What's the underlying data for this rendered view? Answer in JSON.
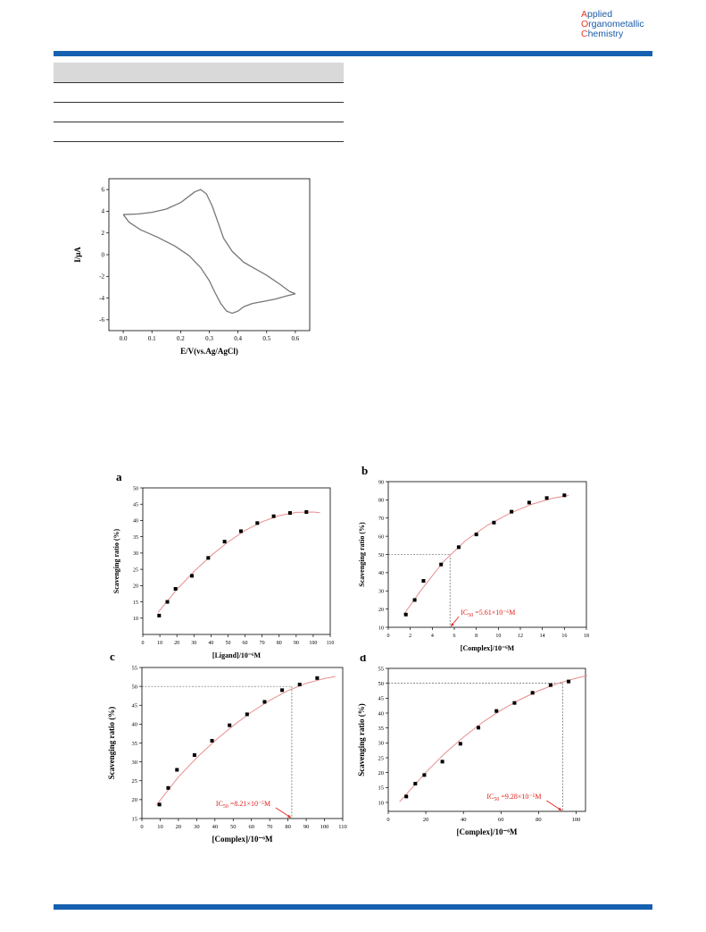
{
  "journal": {
    "name_lines": [
      {
        "cap": "A",
        "rest": "pplied"
      },
      {
        "cap": "O",
        "rest": "rganometallic"
      },
      {
        "cap": "C",
        "rest": "hemistry"
      }
    ]
  },
  "colors": {
    "brand_blue": "#1560b0",
    "logo_red": "#e23b26",
    "fit_curve": "#e88d8d",
    "annotation": "#e0201a",
    "cv_line": "#777777"
  },
  "table": {
    "rows": 4
  },
  "chart_data": [
    {
      "id": "cv",
      "type": "line",
      "xlabel": "E/V(vs.Ag/AgCl)",
      "ylabel": "I/μA",
      "xlim": [
        -0.05,
        0.65
      ],
      "ylim": [
        -7,
        7
      ],
      "xticks": [
        0.0,
        0.1,
        0.2,
        0.3,
        0.4,
        0.5,
        0.6
      ],
      "xtick_labels": [
        "0.0",
        "0.1",
        "0.2",
        "0.3",
        "0.4",
        "0.5",
        "0.6"
      ],
      "yticks": [
        -6,
        -4,
        -2,
        0,
        2,
        4,
        6
      ],
      "ytick_labels": [
        "-6",
        "-4",
        "-2",
        "0",
        "2",
        "4",
        "6"
      ],
      "series": [
        {
          "x": [
            0.0,
            0.05,
            0.1,
            0.15,
            0.2,
            0.23,
            0.25,
            0.27,
            0.29,
            0.31,
            0.33,
            0.35,
            0.38,
            0.42,
            0.46,
            0.5,
            0.55,
            0.58,
            0.6
          ],
          "y": [
            3.7,
            3.75,
            3.9,
            4.2,
            4.8,
            5.4,
            5.8,
            6.0,
            5.6,
            4.5,
            3.0,
            1.5,
            0.3,
            -0.7,
            -1.3,
            -1.9,
            -2.8,
            -3.4,
            -3.6
          ]
        },
        {
          "x": [
            0.6,
            0.57,
            0.53,
            0.49,
            0.45,
            0.42,
            0.4,
            0.38,
            0.36,
            0.34,
            0.32,
            0.3,
            0.27,
            0.23,
            0.18,
            0.12,
            0.06,
            0.02,
            0.0
          ],
          "y": [
            -3.6,
            -3.8,
            -4.1,
            -4.3,
            -4.5,
            -4.8,
            -5.2,
            -5.4,
            -5.2,
            -4.5,
            -3.5,
            -2.4,
            -1.2,
            -0.1,
            0.8,
            1.6,
            2.3,
            3.0,
            3.7
          ]
        }
      ]
    },
    {
      "id": "a",
      "type": "scatter",
      "panel_label": "a",
      "xlabel": "[Ligand]/10⁻⁶M",
      "ylabel": "Scavenging ratio (%)",
      "xlim": [
        0,
        110
      ],
      "ylim": [
        5,
        50
      ],
      "xticks": [
        0,
        10,
        20,
        30,
        40,
        50,
        60,
        70,
        80,
        90,
        100,
        110
      ],
      "xtick_labels": [
        "0",
        "10",
        "20",
        "30",
        "40",
        "50",
        "60",
        "70",
        "80",
        "90",
        "100",
        "110"
      ],
      "yticks": [
        10,
        15,
        20,
        25,
        30,
        35,
        40,
        45,
        50
      ],
      "ytick_labels": [
        "10",
        "15",
        "20",
        "25",
        "30",
        "35",
        "40",
        "45",
        "50"
      ],
      "points": {
        "x": [
          9.6,
          14.4,
          19.2,
          28.8,
          38.4,
          48,
          57.6,
          67.2,
          76.8,
          86.4,
          96
        ],
        "y": [
          10.8,
          15,
          19,
          23,
          28.5,
          33.5,
          36.7,
          39.2,
          41.3,
          42.3,
          42.6
        ]
      },
      "fit": {
        "x": [
          9,
          20,
          30,
          40,
          50,
          60,
          70,
          80,
          90,
          100,
          104
        ],
        "y": [
          11.8,
          18.8,
          24.3,
          29.2,
          33.4,
          36.9,
          39.6,
          41.5,
          42.5,
          42.6,
          42.4
        ]
      }
    },
    {
      "id": "b",
      "type": "scatter",
      "panel_label": "b",
      "xlabel": "[Complex]/10⁻⁶M",
      "ylabel": "Scavenging ratio (%)",
      "xlim": [
        0,
        18
      ],
      "ylim": [
        10,
        90
      ],
      "xticks": [
        0,
        2,
        4,
        6,
        8,
        10,
        12,
        14,
        16,
        18
      ],
      "xtick_labels": [
        "0",
        "2",
        "4",
        "6",
        "8",
        "10",
        "12",
        "14",
        "16",
        "18"
      ],
      "yticks": [
        10,
        20,
        30,
        40,
        50,
        60,
        70,
        80,
        90
      ],
      "ytick_labels": [
        "10",
        "20",
        "30",
        "40",
        "50",
        "60",
        "70",
        "80",
        "90"
      ],
      "points": {
        "x": [
          1.6,
          2.4,
          3.2,
          4.8,
          6.4,
          8.0,
          9.6,
          11.2,
          12.8,
          14.4,
          16.0
        ],
        "y": [
          17,
          25,
          35.5,
          44.5,
          54,
          61,
          67.5,
          73.5,
          78.5,
          81,
          82.5
        ]
      },
      "fit": {
        "x": [
          1.4,
          3,
          5,
          7,
          9,
          11,
          13,
          15,
          16.4
        ],
        "y": [
          17,
          30.5,
          46,
          57.5,
          66,
          72.5,
          77.5,
          81,
          82.4
        ]
      },
      "ic50": {
        "x": 5.61,
        "y": 50,
        "label": "IC",
        "sub": "50",
        "value": " =5.61×10⁻⁶M"
      }
    },
    {
      "id": "c",
      "type": "scatter",
      "panel_label": "c",
      "xlabel": "[Complex]/10⁻⁶M",
      "ylabel": "Scavenging ratio (%)",
      "xlim": [
        0,
        110
      ],
      "ylim": [
        15,
        55
      ],
      "xticks": [
        0,
        10,
        20,
        30,
        40,
        50,
        60,
        70,
        80,
        90,
        100,
        110
      ],
      "xtick_labels": [
        "0",
        "10",
        "20",
        "30",
        "40",
        "50",
        "60",
        "70",
        "80",
        "90",
        "100",
        "110"
      ],
      "yticks": [
        15,
        20,
        25,
        30,
        35,
        40,
        45,
        50,
        55
      ],
      "ytick_labels": [
        "15",
        "20",
        "25",
        "30",
        "35",
        "40",
        "45",
        "50",
        "55"
      ],
      "points": {
        "x": [
          9.6,
          14.4,
          19.2,
          28.8,
          38.4,
          48,
          57.6,
          67.2,
          76.8,
          86.4,
          96
        ],
        "y": [
          18.7,
          23.1,
          27.9,
          31.8,
          35.6,
          39.7,
          42.6,
          45.9,
          49,
          50.5,
          52.2
        ]
      },
      "fit": {
        "x": [
          8,
          20,
          30,
          40,
          50,
          60,
          70,
          80,
          90,
          100,
          106
        ],
        "y": [
          18.6,
          26,
          31.1,
          35.6,
          39.6,
          43.2,
          46.3,
          48.9,
          50.8,
          52.1,
          52.6
        ]
      },
      "ic50": {
        "x": 82.1,
        "y": 50,
        "label": "IC",
        "sub": "50",
        "value": " =8.21×10⁻⁵M"
      }
    },
    {
      "id": "d",
      "type": "scatter",
      "panel_label": "d",
      "xlabel": "[Complex]/10⁻⁶M",
      "ylabel": "Scavenging ratio (%)",
      "xlim": [
        0,
        105
      ],
      "ylim": [
        7,
        55
      ],
      "xticks": [
        0,
        20,
        40,
        60,
        80,
        100
      ],
      "xtick_labels": [
        "0",
        "20",
        "40",
        "60",
        "80",
        "100"
      ],
      "yticks": [
        10,
        15,
        20,
        25,
        30,
        35,
        40,
        45,
        50,
        55
      ],
      "ytick_labels": [
        "10",
        "15",
        "20",
        "25",
        "30",
        "35",
        "40",
        "45",
        "50",
        "55"
      ],
      "points": {
        "x": [
          9.6,
          14.4,
          19.2,
          28.8,
          38.4,
          48,
          57.6,
          67.2,
          76.8,
          86.4,
          96
        ],
        "y": [
          12,
          16.3,
          19.2,
          23.7,
          29.7,
          35.1,
          40.7,
          43.4,
          46.8,
          49.4,
          50.6
        ]
      },
      "fit": {
        "x": [
          6,
          20,
          30,
          40,
          50,
          60,
          70,
          80,
          90,
          100,
          106
        ],
        "y": [
          10.2,
          20.1,
          26.4,
          31.9,
          36.8,
          41.0,
          44.5,
          47.5,
          49.9,
          51.7,
          52.6
        ]
      },
      "ic50": {
        "x": 92.8,
        "y": 50,
        "label": "IC",
        "sub": "50",
        "value": " =9.28×10⁻⁵M"
      }
    }
  ]
}
